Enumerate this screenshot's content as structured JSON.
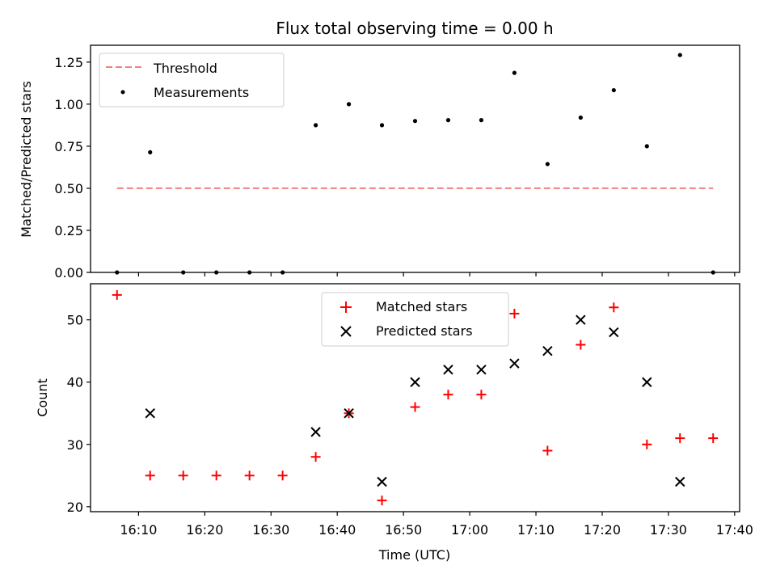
{
  "title": "Flux total observing time = 0.00 h",
  "chart_data": [
    {
      "type": "line",
      "panel": "top",
      "ylabel": "Matched/Predicted stars",
      "xlabel": "",
      "xlim": [
        "16:02:45",
        "17:40:45"
      ],
      "ylim": [
        0,
        1.35
      ],
      "yticks": [
        "0.00",
        "0.25",
        "0.50",
        "0.75",
        "1.00",
        "1.25"
      ],
      "ytick_values": [
        0,
        0.25,
        0.5,
        0.75,
        1.0,
        1.25
      ],
      "legend_position": "top-left",
      "series": [
        {
          "name": "Threshold",
          "kind": "dashed-line",
          "color": "#f08080",
          "x": [
            "16:06:45",
            "17:36:45"
          ],
          "y": [
            0.5,
            0.5
          ]
        },
        {
          "name": "Measurements",
          "kind": "scatter",
          "marker": "dot",
          "color": "#000000",
          "x": [
            "16:06:45",
            "16:11:45",
            "16:16:45",
            "16:21:45",
            "16:26:45",
            "16:31:45",
            "16:36:45",
            "16:41:45",
            "16:46:45",
            "16:51:45",
            "16:56:45",
            "17:01:45",
            "17:06:45",
            "17:11:45",
            "17:16:45",
            "17:21:45",
            "17:26:45",
            "17:31:45",
            "17:36:45"
          ],
          "y": [
            0,
            0.714,
            0,
            0,
            0,
            0,
            0.875,
            1.0,
            0.875,
            0.9,
            0.905,
            0.905,
            1.186,
            0.644,
            0.92,
            1.083,
            0.75,
            1.292,
            0
          ]
        }
      ]
    },
    {
      "type": "scatter",
      "panel": "bottom",
      "ylabel": "Count",
      "xlabel": "Time (UTC)",
      "xlim": [
        "16:02:45",
        "17:40:45"
      ],
      "ylim": [
        19.2,
        55.8
      ],
      "yticks": [
        "20",
        "30",
        "40",
        "50"
      ],
      "ytick_values": [
        20,
        30,
        40,
        50
      ],
      "xticks": [
        "16:10",
        "16:20",
        "16:30",
        "16:40",
        "16:50",
        "17:00",
        "17:10",
        "17:20",
        "17:30",
        "17:40"
      ],
      "xtick_values": [
        "16:10",
        "16:20",
        "16:30",
        "16:40",
        "16:50",
        "17:00",
        "17:10",
        "17:20",
        "17:30",
        "17:40"
      ],
      "legend_position": "upper center",
      "series": [
        {
          "name": "Matched stars",
          "marker": "plus",
          "color": "#ff0000",
          "x": [
            "16:06:45",
            "16:11:45",
            "16:16:45",
            "16:21:45",
            "16:26:45",
            "16:31:45",
            "16:36:45",
            "16:41:45",
            "16:46:45",
            "16:51:45",
            "16:56:45",
            "17:01:45",
            "17:06:45",
            "17:11:45",
            "17:16:45",
            "17:21:45",
            "17:26:45",
            "17:31:45",
            "17:36:45"
          ],
          "y": [
            54,
            25,
            25,
            25,
            25,
            25,
            28,
            35,
            21,
            36,
            38,
            38,
            51,
            29,
            46,
            52,
            30,
            31,
            31
          ]
        },
        {
          "name": "Predicted stars",
          "marker": "x",
          "color": "#000000",
          "x": [
            "16:11:45",
            "16:36:45",
            "16:41:45",
            "16:46:45",
            "16:51:45",
            "16:56:45",
            "17:01:45",
            "17:06:45",
            "17:11:45",
            "17:16:45",
            "17:21:45",
            "17:26:45",
            "17:31:45"
          ],
          "y": [
            35,
            32,
            35,
            24,
            40,
            42,
            42,
            43,
            45,
            50,
            48,
            40,
            24
          ]
        }
      ]
    }
  ]
}
